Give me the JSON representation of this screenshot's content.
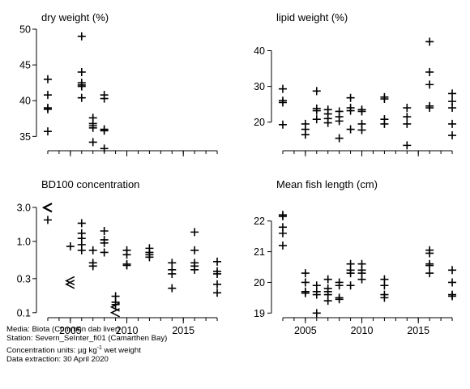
{
  "chart_data": [
    {
      "type": "scatter",
      "title": "dry weight (%)",
      "xlim": [
        2002.5,
        2018.5
      ],
      "ylim": [
        33,
        50
      ],
      "yticks": [
        35,
        40,
        45,
        50
      ],
      "points": [
        [
          2003,
          43.0
        ],
        [
          2003,
          40.8
        ],
        [
          2003,
          39.0
        ],
        [
          2003,
          38.8
        ],
        [
          2003,
          35.7
        ],
        [
          2006,
          49.0
        ],
        [
          2006,
          44.0
        ],
        [
          2006,
          42.5
        ],
        [
          2006,
          42.2
        ],
        [
          2006,
          42.0
        ],
        [
          2006,
          40.4
        ],
        [
          2007,
          37.6
        ],
        [
          2007,
          36.8
        ],
        [
          2007,
          36.5
        ],
        [
          2007,
          36.2
        ],
        [
          2007,
          34.2
        ],
        [
          2008,
          40.8
        ],
        [
          2008,
          40.3
        ],
        [
          2008,
          36.0
        ],
        [
          2008,
          35.8
        ],
        [
          2008,
          33.3
        ]
      ],
      "less_than": []
    },
    {
      "type": "scatter",
      "title": "lipid weight (%)",
      "xlim": [
        2002.5,
        2018.5
      ],
      "ylim": [
        12,
        46
      ],
      "yticks": [
        20,
        30,
        40
      ],
      "points": [
        [
          2003,
          29.3
        ],
        [
          2003,
          26.0
        ],
        [
          2003,
          25.5
        ],
        [
          2003,
          19.3
        ],
        [
          2005,
          19.5
        ],
        [
          2005,
          18.0
        ],
        [
          2005,
          16.5
        ],
        [
          2006,
          28.7
        ],
        [
          2006,
          23.8
        ],
        [
          2006,
          23.2
        ],
        [
          2006,
          20.8
        ],
        [
          2007,
          23.5
        ],
        [
          2007,
          22.3
        ],
        [
          2007,
          21.0
        ],
        [
          2007,
          19.8
        ],
        [
          2008,
          23.0
        ],
        [
          2008,
          21.5
        ],
        [
          2008,
          20.3
        ],
        [
          2008,
          15.5
        ],
        [
          2009,
          26.8
        ],
        [
          2009,
          24.0
        ],
        [
          2009,
          23.2
        ],
        [
          2009,
          18.0
        ],
        [
          2010,
          23.5
        ],
        [
          2010,
          23.0
        ],
        [
          2010,
          19.5
        ],
        [
          2010,
          17.8
        ],
        [
          2012,
          27.0
        ],
        [
          2012,
          26.5
        ],
        [
          2012,
          20.8
        ],
        [
          2012,
          19.5
        ],
        [
          2014,
          24.0
        ],
        [
          2014,
          21.5
        ],
        [
          2014,
          19.5
        ],
        [
          2014,
          13.5
        ],
        [
          2016,
          42.5
        ],
        [
          2016,
          34.0
        ],
        [
          2016,
          30.5
        ],
        [
          2016,
          24.5
        ],
        [
          2016,
          24.0
        ],
        [
          2018,
          28.0
        ],
        [
          2018,
          25.8
        ],
        [
          2018,
          24.0
        ],
        [
          2018,
          19.5
        ],
        [
          2018,
          16.3
        ]
      ],
      "less_than": []
    },
    {
      "type": "scatter",
      "title": "BD100 concentration",
      "yscale": "log",
      "xlim": [
        2002.5,
        2018.5
      ],
      "ylim": [
        0.085,
        3.5
      ],
      "yticks": [
        0.1,
        0.3,
        1.0,
        3.0
      ],
      "yticklabels": [
        "0.1",
        "0.3",
        "1.0",
        "3.0"
      ],
      "points": [
        [
          2003,
          2.0
        ],
        [
          2005,
          0.85
        ],
        [
          2006,
          1.8
        ],
        [
          2006,
          1.3
        ],
        [
          2006,
          1.1
        ],
        [
          2006,
          0.9
        ],
        [
          2006,
          0.75
        ],
        [
          2007,
          0.75
        ],
        [
          2007,
          0.5
        ],
        [
          2007,
          0.45
        ],
        [
          2008,
          1.4
        ],
        [
          2008,
          1.05
        ],
        [
          2008,
          0.95
        ],
        [
          2008,
          0.7
        ],
        [
          2009,
          0.17
        ],
        [
          2009,
          0.14
        ],
        [
          2009,
          0.13
        ],
        [
          2010,
          0.75
        ],
        [
          2010,
          0.65
        ],
        [
          2010,
          0.48
        ],
        [
          2010,
          0.46
        ],
        [
          2012,
          0.8
        ],
        [
          2012,
          0.7
        ],
        [
          2012,
          0.65
        ],
        [
          2012,
          0.6
        ],
        [
          2014,
          0.5
        ],
        [
          2014,
          0.4
        ],
        [
          2014,
          0.35
        ],
        [
          2014,
          0.22
        ],
        [
          2016,
          1.35
        ],
        [
          2016,
          0.75
        ],
        [
          2016,
          0.5
        ],
        [
          2016,
          0.45
        ],
        [
          2016,
          0.4
        ],
        [
          2018,
          0.52
        ],
        [
          2018,
          0.38
        ],
        [
          2018,
          0.35
        ],
        [
          2018,
          0.25
        ],
        [
          2018,
          0.19
        ]
      ],
      "less_than": [
        [
          2003,
          3.0
        ],
        [
          2003,
          2.95
        ],
        [
          2005,
          0.28
        ],
        [
          2005,
          0.25
        ],
        [
          2009,
          0.12
        ],
        [
          2009,
          0.1
        ]
      ]
    },
    {
      "type": "scatter",
      "title": "Mean fish length (cm)",
      "xlim": [
        2002.5,
        2018.5
      ],
      "ylim": [
        18.85,
        22.6
      ],
      "yticks": [
        19,
        20,
        21,
        22
      ],
      "points": [
        [
          2003,
          22.2
        ],
        [
          2003,
          22.15
        ],
        [
          2003,
          21.8
        ],
        [
          2003,
          21.6
        ],
        [
          2003,
          21.2
        ],
        [
          2005,
          20.3
        ],
        [
          2005,
          20.0
        ],
        [
          2005,
          19.7
        ],
        [
          2005,
          19.65
        ],
        [
          2006,
          19.9
        ],
        [
          2006,
          19.7
        ],
        [
          2006,
          19.6
        ],
        [
          2006,
          19.0
        ],
        [
          2007,
          20.1
        ],
        [
          2007,
          19.8
        ],
        [
          2007,
          19.7
        ],
        [
          2007,
          19.6
        ],
        [
          2007,
          19.4
        ],
        [
          2008,
          20.0
        ],
        [
          2008,
          19.9
        ],
        [
          2008,
          19.5
        ],
        [
          2008,
          19.45
        ],
        [
          2009,
          20.6
        ],
        [
          2009,
          20.4
        ],
        [
          2009,
          20.3
        ],
        [
          2009,
          19.9
        ],
        [
          2010,
          20.6
        ],
        [
          2010,
          20.4
        ],
        [
          2010,
          20.3
        ],
        [
          2010,
          20.1
        ],
        [
          2012,
          20.1
        ],
        [
          2012,
          19.9
        ],
        [
          2012,
          19.6
        ],
        [
          2012,
          19.5
        ],
        [
          2016,
          21.05
        ],
        [
          2016,
          20.95
        ],
        [
          2016,
          20.6
        ],
        [
          2016,
          20.55
        ],
        [
          2016,
          20.3
        ],
        [
          2018,
          20.4
        ],
        [
          2018,
          20.0
        ],
        [
          2018,
          19.6
        ],
        [
          2018,
          19.55
        ]
      ],
      "less_than": []
    }
  ],
  "x_axis": {
    "ticks": [
      2005,
      2010,
      2015
    ],
    "tick_labels": [
      "2005",
      "2010",
      "2015"
    ],
    "minor_ticks": [
      2003,
      2004,
      2005,
      2006,
      2007,
      2008,
      2009,
      2010,
      2011,
      2012,
      2013,
      2014,
      2015,
      2016,
      2017,
      2018
    ]
  },
  "footer": {
    "media": "Media: Biota (Common dab liver)",
    "station": "Station: Severn_SeInter_fi01 (Camarthen Bay)",
    "units_prefix": "Concentration units:  µg kg",
    "units_exponent": "-1",
    "units_suffix": " wet weight",
    "extraction": "Data extraction: 30 April 2020"
  }
}
